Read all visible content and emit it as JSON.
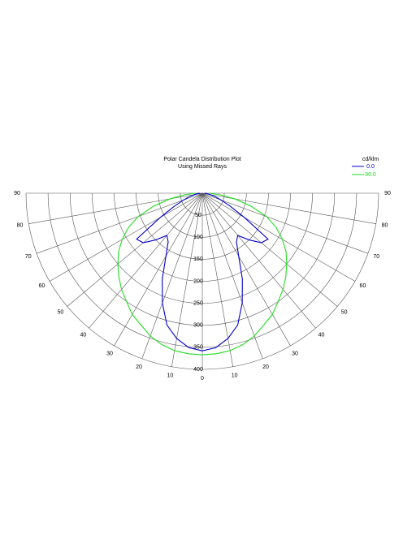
{
  "chart_data": {
    "type": "polar",
    "title": "Polar Candela Distribution Plot",
    "subtitle": "Using Missed Rays",
    "legend_title": "cd/klm",
    "angles": [
      0,
      5,
      10,
      15,
      20,
      25,
      30,
      35,
      40,
      45,
      50,
      55,
      60,
      65,
      70,
      75,
      80,
      85,
      90
    ],
    "series": [
      {
        "name": "0.0",
        "color": "#0000cc",
        "values": [
          358,
          352,
          335,
          310,
          265,
          215,
          165,
          135,
          125,
          150,
          175,
          182,
          110,
          70,
          45,
          30,
          18,
          10,
          5
        ]
      },
      {
        "name": "90.0",
        "color": "#22dd22",
        "values": [
          367,
          366,
          363,
          356,
          345,
          330,
          318,
          300,
          285,
          268,
          250,
          232,
          210,
          185,
          155,
          115,
          75,
          40,
          15
        ]
      }
    ],
    "rlim": [
      0,
      400
    ],
    "rticks": [
      50,
      100,
      150,
      200,
      250,
      300,
      350,
      400
    ],
    "thetaticks": [
      0,
      10,
      20,
      30,
      40,
      50,
      60,
      70,
      80,
      90
    ]
  }
}
